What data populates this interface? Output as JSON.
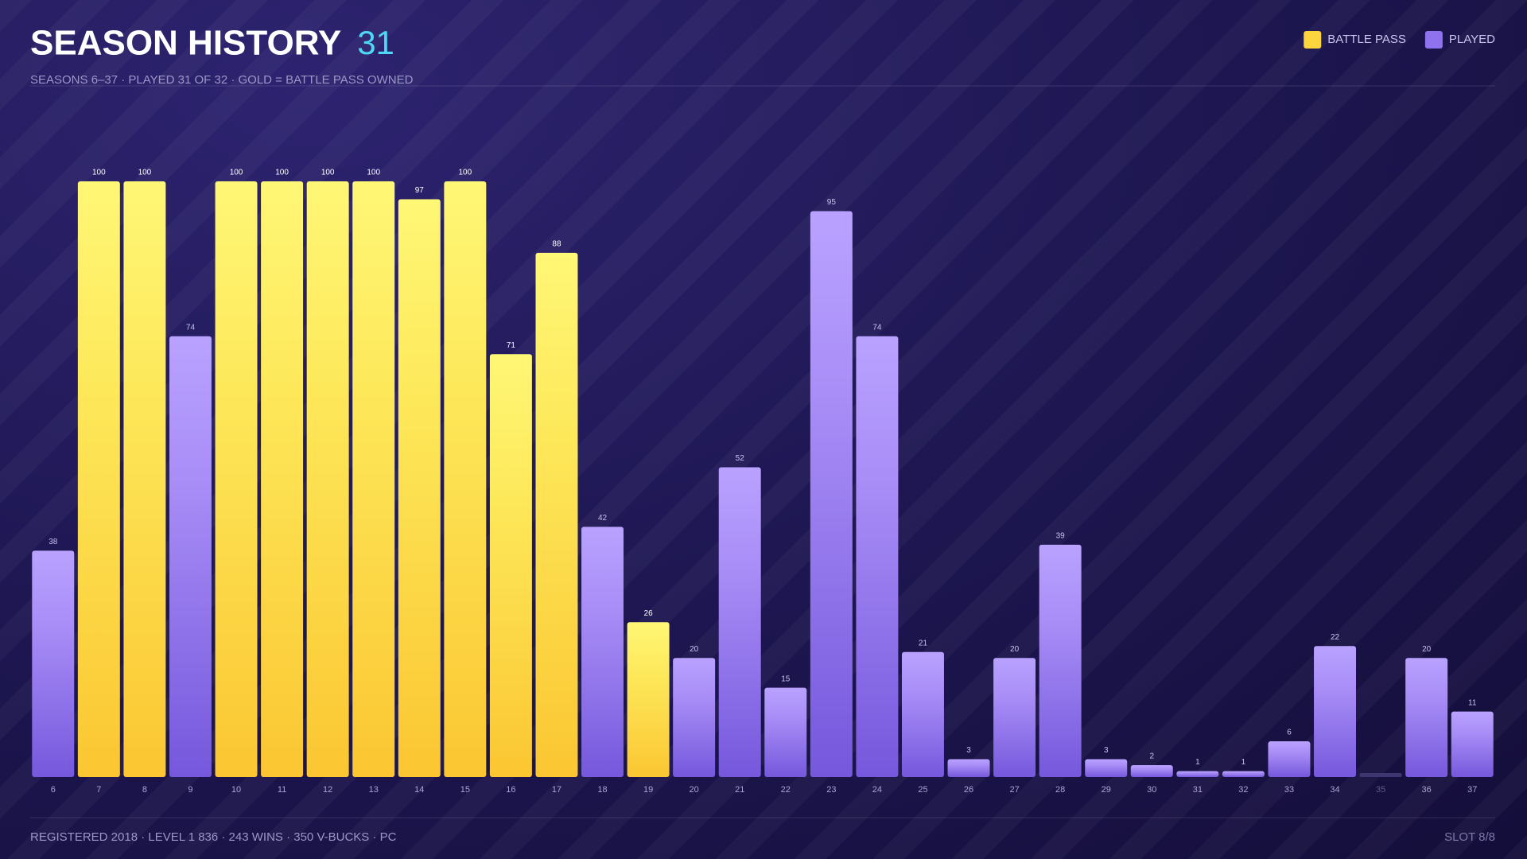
{
  "chart_data": {
    "type": "bar",
    "title": "SEASON HISTORY",
    "title_count": "31",
    "subtitle": "SEASONS 6–37 · PLAYED 31 OF 32 · GOLD = BATTLE PASS OWNED",
    "footer_left": "REGISTERED 2018 · LEVEL 1 836 · 243 WINS · 350 V-BUCKS · PC",
    "footer_right": "SLOT 8/8",
    "categories": [
      "6",
      "7",
      "8",
      "9",
      "10",
      "11",
      "12",
      "13",
      "14",
      "15",
      "16",
      "17",
      "18",
      "19",
      "20",
      "21",
      "22",
      "23",
      "24",
      "25",
      "26",
      "27",
      "28",
      "29",
      "30",
      "31",
      "32",
      "33",
      "34",
      "35",
      "36",
      "37"
    ],
    "series": [
      {
        "name": "BATTLE PASS",
        "color": "#fcd53f",
        "values": [
          null,
          100,
          100,
          null,
          100,
          100,
          100,
          100,
          97,
          100,
          71,
          88,
          null,
          26,
          null,
          null,
          null,
          null,
          null,
          null,
          null,
          null,
          null,
          null,
          null,
          null,
          null,
          null,
          null,
          null,
          null,
          null
        ]
      },
      {
        "name": "PLAYED",
        "color": "#8f72ee",
        "values": [
          38,
          null,
          null,
          74,
          null,
          null,
          null,
          null,
          null,
          null,
          null,
          null,
          42,
          null,
          20,
          52,
          15,
          95,
          74,
          21,
          3,
          20,
          39,
          3,
          2,
          1,
          1,
          6,
          22,
          null,
          20,
          11
        ]
      }
    ],
    "ylim": [
      0,
      100
    ]
  }
}
